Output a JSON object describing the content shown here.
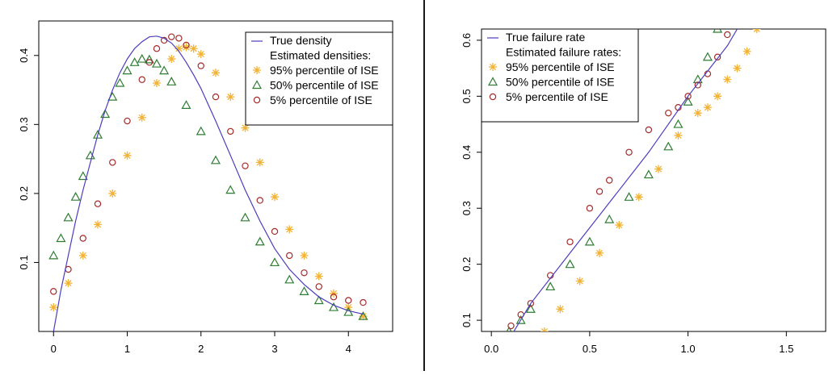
{
  "chart_data": [
    {
      "type": "line",
      "title": "",
      "xlabel": "",
      "ylabel": "",
      "xlim": [
        -0.2,
        4.6
      ],
      "ylim": [
        0.0,
        0.45
      ],
      "x_ticks": [
        "0",
        "1",
        "2",
        "3",
        "4"
      ],
      "y_ticks": [
        "0.1",
        "0.2",
        "0.3",
        "0.4"
      ],
      "grid": false,
      "legend_position": "top-right",
      "legend_heading": "Estimated densities:",
      "series": [
        {
          "name": "True density",
          "style": "line",
          "color": "#4b3dbf",
          "x": [
            0,
            0.1,
            0.2,
            0.3,
            0.4,
            0.5,
            0.6,
            0.7,
            0.8,
            0.9,
            1.0,
            1.1,
            1.2,
            1.3,
            1.4,
            1.5,
            1.6,
            1.7,
            1.8,
            1.9,
            2.0,
            2.2,
            2.4,
            2.6,
            2.8,
            3.0,
            3.2,
            3.4,
            3.6,
            3.8,
            4.0,
            4.2
          ],
          "y": [
            0.0,
            0.06,
            0.11,
            0.16,
            0.205,
            0.245,
            0.285,
            0.32,
            0.35,
            0.375,
            0.395,
            0.41,
            0.42,
            0.427,
            0.428,
            0.425,
            0.418,
            0.406,
            0.39,
            0.372,
            0.352,
            0.305,
            0.255,
            0.205,
            0.16,
            0.12,
            0.09,
            0.068,
            0.05,
            0.038,
            0.03,
            0.025
          ]
        },
        {
          "name": "95% percentile of ISE",
          "style": "star",
          "color": "#f2b233",
          "x": [
            0,
            0.2,
            0.4,
            0.6,
            0.8,
            1.0,
            1.2,
            1.4,
            1.6,
            1.7,
            1.8,
            1.9,
            2.0,
            2.2,
            2.4,
            2.6,
            2.8,
            3.0,
            3.2,
            3.4,
            3.6,
            3.8,
            4.0,
            4.2
          ],
          "y": [
            0.035,
            0.07,
            0.11,
            0.155,
            0.2,
            0.255,
            0.31,
            0.36,
            0.395,
            0.41,
            0.412,
            0.41,
            0.402,
            0.375,
            0.34,
            0.295,
            0.245,
            0.195,
            0.148,
            0.11,
            0.08,
            0.055,
            0.035,
            0.022
          ]
        },
        {
          "name": "50% percentile of ISE",
          "style": "triangle",
          "color": "#2e7d32",
          "x": [
            0,
            0.1,
            0.2,
            0.3,
            0.4,
            0.5,
            0.6,
            0.7,
            0.8,
            0.9,
            1.0,
            1.1,
            1.2,
            1.3,
            1.4,
            1.5,
            1.6,
            1.8,
            2.0,
            2.2,
            2.4,
            2.6,
            2.8,
            3.0,
            3.2,
            3.4,
            3.6,
            3.8,
            4.0,
            4.2
          ],
          "y": [
            0.11,
            0.135,
            0.165,
            0.195,
            0.225,
            0.255,
            0.285,
            0.315,
            0.34,
            0.36,
            0.378,
            0.39,
            0.395,
            0.394,
            0.388,
            0.378,
            0.362,
            0.328,
            0.29,
            0.248,
            0.205,
            0.165,
            0.13,
            0.1,
            0.075,
            0.058,
            0.045,
            0.035,
            0.028,
            0.022
          ]
        },
        {
          "name": "5% percentile of ISE",
          "style": "circle",
          "color": "#a52a2a",
          "x": [
            0,
            0.2,
            0.4,
            0.6,
            0.8,
            1.0,
            1.2,
            1.3,
            1.4,
            1.5,
            1.6,
            1.7,
            1.8,
            2.0,
            2.2,
            2.4,
            2.6,
            2.8,
            3.0,
            3.2,
            3.4,
            3.6,
            3.8,
            4.0,
            4.2
          ],
          "y": [
            0.058,
            0.09,
            0.135,
            0.185,
            0.245,
            0.305,
            0.365,
            0.39,
            0.41,
            0.422,
            0.427,
            0.425,
            0.415,
            0.385,
            0.34,
            0.29,
            0.24,
            0.19,
            0.145,
            0.11,
            0.085,
            0.065,
            0.05,
            0.045,
            0.042
          ]
        }
      ]
    },
    {
      "type": "line",
      "title": "",
      "xlabel": "",
      "ylabel": "",
      "xlim": [
        -0.05,
        1.7
      ],
      "ylim": [
        0.08,
        0.62
      ],
      "x_ticks": [
        "0.0",
        "0.5",
        "1.0",
        "1.5"
      ],
      "y_ticks": [
        "0.1",
        "0.2",
        "0.3",
        "0.4",
        "0.5",
        "0.6"
      ],
      "grid": false,
      "legend_position": "top-left",
      "legend_heading": "Estimated failure rates:",
      "series": [
        {
          "name": "True failure rate",
          "style": "line",
          "color": "#4b3dbf",
          "x": [
            0.08,
            0.2,
            0.4,
            0.6,
            0.8,
            1.0,
            1.2,
            1.25
          ],
          "y": [
            0.06,
            0.13,
            0.22,
            0.31,
            0.4,
            0.5,
            0.59,
            0.62
          ]
        },
        {
          "name": "95% percentile of ISE",
          "style": "star",
          "color": "#f2b233",
          "x": [
            0.27,
            0.35,
            0.45,
            0.55,
            0.65,
            0.75,
            0.85,
            0.95,
            1.05,
            1.1,
            1.15,
            1.2,
            1.25,
            1.3,
            1.35
          ],
          "y": [
            0.08,
            0.12,
            0.17,
            0.22,
            0.27,
            0.32,
            0.37,
            0.43,
            0.47,
            0.48,
            0.5,
            0.53,
            0.55,
            0.58,
            0.62
          ]
        },
        {
          "name": "50% percentile of ISE",
          "style": "triangle",
          "color": "#2e7d32",
          "x": [
            0.09,
            0.15,
            0.2,
            0.3,
            0.4,
            0.5,
            0.6,
            0.7,
            0.8,
            0.9,
            0.95,
            1.0,
            1.05,
            1.1,
            1.15
          ],
          "y": [
            0.08,
            0.1,
            0.12,
            0.16,
            0.2,
            0.24,
            0.28,
            0.32,
            0.36,
            0.41,
            0.45,
            0.49,
            0.53,
            0.57,
            0.62
          ]
        },
        {
          "name": "5% percentile of ISE",
          "style": "circle",
          "color": "#a52a2a",
          "x": [
            0.1,
            0.15,
            0.2,
            0.3,
            0.4,
            0.5,
            0.55,
            0.6,
            0.7,
            0.8,
            0.9,
            0.95,
            1.0,
            1.05,
            1.1,
            1.15,
            1.2
          ],
          "y": [
            0.09,
            0.11,
            0.13,
            0.18,
            0.24,
            0.3,
            0.33,
            0.35,
            0.4,
            0.44,
            0.47,
            0.48,
            0.5,
            0.52,
            0.54,
            0.57,
            0.61
          ]
        }
      ]
    }
  ]
}
